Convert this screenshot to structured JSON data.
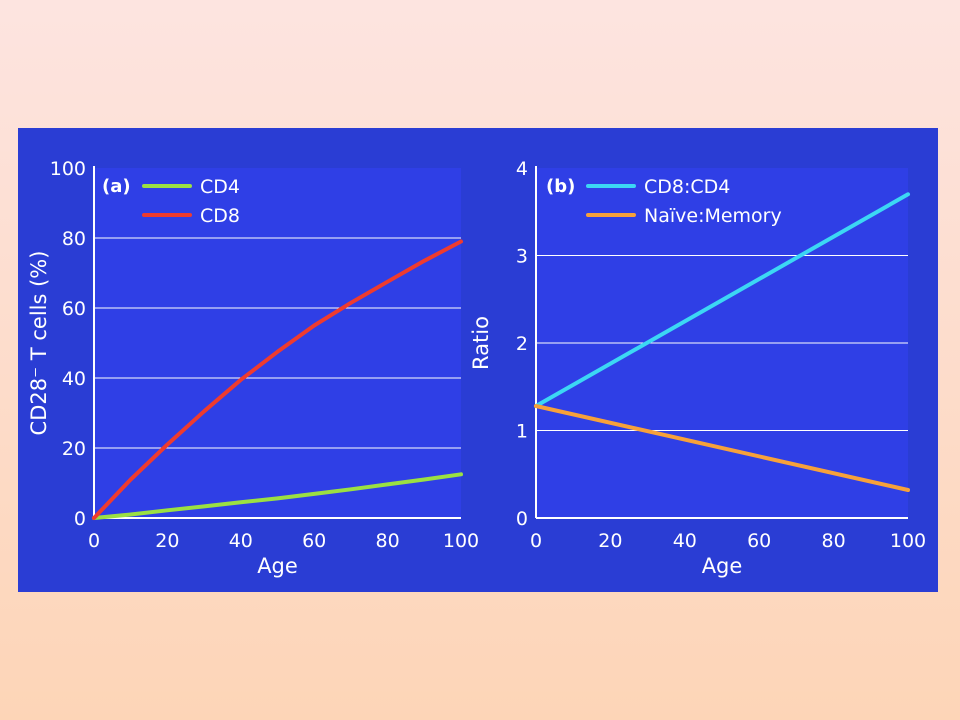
{
  "colors": {
    "slide_top": "#fde4e0",
    "slide_bottom": "#fdd5b7",
    "figure_background": "#2a3dd4",
    "plot_background": "#2f3fe6",
    "gridline": "#ffffff",
    "axis": "#ffffff",
    "CD4": "#9be042",
    "CD8": "#ef3b2e",
    "CD8:CD4": "#3cd7f4",
    "Naïve:Memory": "#f7a13a"
  },
  "chart_data": [
    {
      "type": "line",
      "panel_label": "(a)",
      "title": "",
      "xlabel": "Age",
      "ylabel": "CD28⁻ T cells (%)",
      "xlim": [
        0,
        100
      ],
      "ylim": [
        0,
        100
      ],
      "xticks": [
        "0",
        "20",
        "40",
        "60",
        "80",
        "100"
      ],
      "yticks": [
        "0",
        "20",
        "40",
        "60",
        "80",
        "100"
      ],
      "grid": "horizontal",
      "legend": "top-left",
      "x": [
        0,
        10,
        20,
        30,
        40,
        50,
        60,
        70,
        80,
        90,
        100
      ],
      "series": [
        {
          "name": "CD4",
          "color": "#9be042",
          "values": [
            0,
            1,
            2.2,
            3.3,
            4.5,
            5.6,
            6.9,
            8.2,
            9.6,
            11,
            12.5
          ]
        },
        {
          "name": "CD8",
          "color": "#ef3b2e",
          "values": [
            0,
            11,
            21,
            30.5,
            39.5,
            47.5,
            55,
            61.5,
            67.5,
            73.5,
            79
          ]
        }
      ]
    },
    {
      "type": "line",
      "panel_label": "(b)",
      "title": "",
      "xlabel": "Age",
      "ylabel": "Ratio",
      "xlim": [
        0,
        100
      ],
      "ylim": [
        0,
        4
      ],
      "xticks": [
        "0",
        "20",
        "40",
        "60",
        "80",
        "100"
      ],
      "yticks": [
        "0",
        "1",
        "2",
        "3",
        "4"
      ],
      "grid": "horizontal",
      "legend": "top-left",
      "x": [
        0,
        100
      ],
      "series": [
        {
          "name": "CD8:CD4",
          "color": "#3cd7f4",
          "values": [
            1.28,
            3.7
          ]
        },
        {
          "name": "Naïve:Memory",
          "color": "#f7a13a",
          "values": [
            1.28,
            0.32
          ]
        }
      ]
    }
  ]
}
